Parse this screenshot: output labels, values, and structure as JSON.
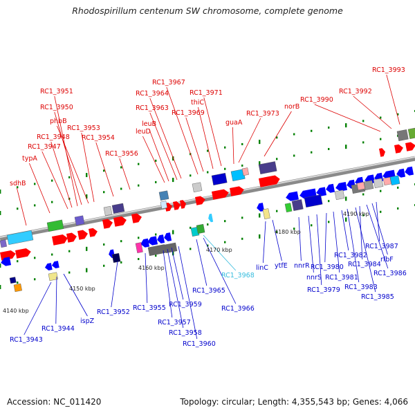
{
  "title": "Rhodospirillum centenum SW chromosome, complete genome",
  "footer": {
    "accession": "Accession: NC_011420",
    "stats": "Topology: circular; Length: 4,355,543 bp; Genes: 4,066"
  },
  "colors": {
    "forward_gene": "#ff0000",
    "reverse_gene": "#0000ff",
    "rna_gene": "#33ccff",
    "backbone": "#999999",
    "tick": "#008000"
  },
  "kbp_ticks": [
    "4140 kbp",
    "4150 kbp",
    "4160 kbp",
    "4170 kbp",
    "4180 kbp",
    "4190 kbp"
  ],
  "top_labels": [
    "RC1_3993",
    "RC1_3992",
    "RC1_3990",
    "norB",
    "RC1_3973",
    "guaA",
    "RC1_3971",
    "thiC",
    "RC1_3969",
    "RC1_3967",
    "RC1_3964",
    "RC1_3963",
    "leuB",
    "leuD",
    "RC1_3956",
    "RC1_3954",
    "RC1_3953",
    "phbB",
    "RC1_3950",
    "RC1_3951",
    "RC1_3948",
    "RC1_3947",
    "typA",
    "sdhB"
  ],
  "bottom_labels": [
    "RC1_3987",
    "rfbF",
    "RC1_3986",
    "RC1_3984",
    "RC1_3985",
    "RC1_3983",
    "RC1_3982",
    "RC1_3981",
    "RC1_3980",
    "RC1_3979",
    "nnrS",
    "nnrR",
    "ytfE",
    "linC",
    "RC1_3968",
    "RC1_3966",
    "RC1_3965",
    "RC1_3960",
    "RC1_3959",
    "RC1_3958",
    "RC1_3957",
    "RC1_3955",
    "RC1_3952",
    "ispZ",
    "RC1_3944",
    "RC1_3943"
  ]
}
